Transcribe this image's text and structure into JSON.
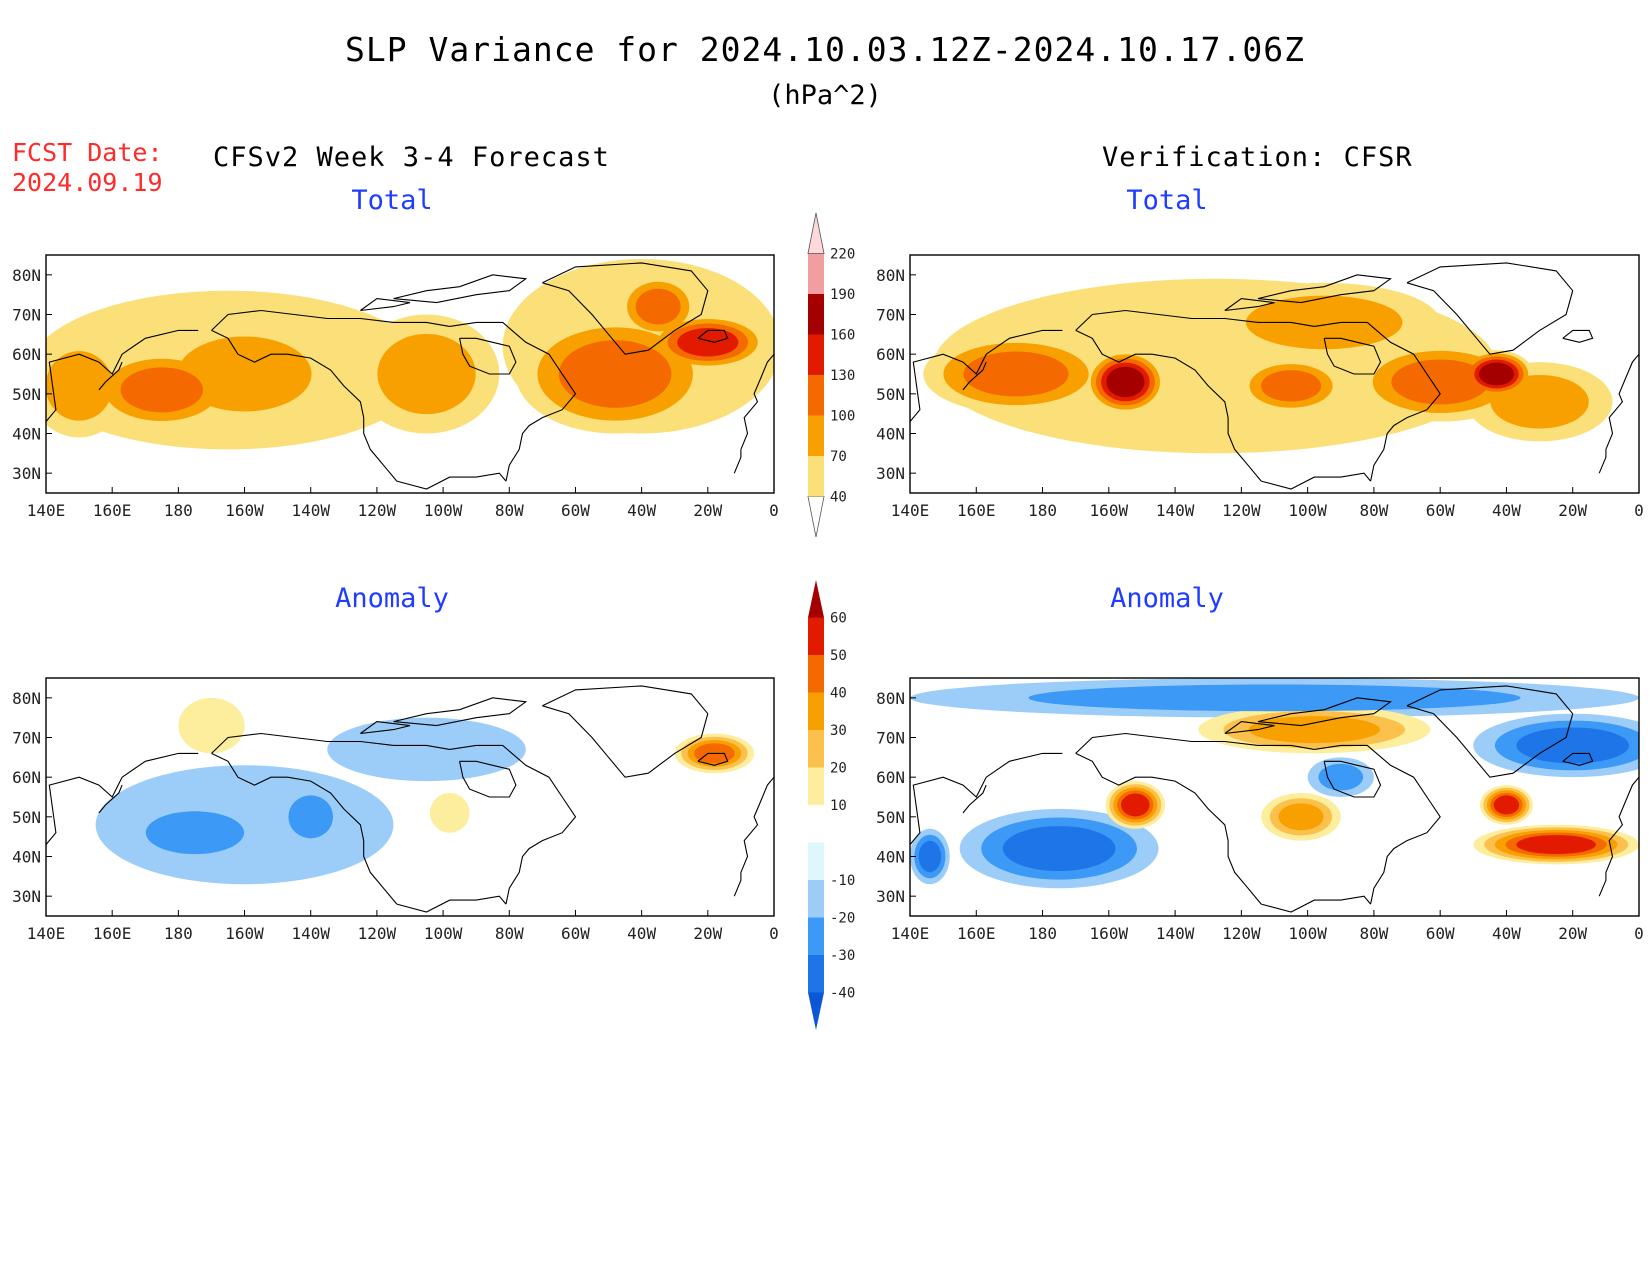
{
  "header": {
    "title": "SLP Variance for 2024.10.03.12Z-2024.10.17.06Z",
    "units": "(hPa^2)",
    "fcst_date_label": "FCST Date:",
    "fcst_date_value": "2024.09.19",
    "left_column_title": "CFSv2 Week 3-4 Forecast",
    "right_column_title": "Verification: CFSR"
  },
  "axes": {
    "lon_ticks": [
      "140E",
      "160E",
      "180",
      "160W",
      "140W",
      "120W",
      "100W",
      "80W",
      "60W",
      "40W",
      "20W",
      "0"
    ],
    "lat_ticks": [
      "80N",
      "70N",
      "60N",
      "50N",
      "40N",
      "30N"
    ],
    "lon_values": [
      140,
      160,
      180,
      200,
      220,
      240,
      260,
      280,
      300,
      320,
      340,
      360
    ],
    "lat_values": [
      80,
      70,
      60,
      50,
      40,
      30
    ],
    "lon_range": [
      140,
      360
    ],
    "lat_range": [
      25,
      85
    ]
  },
  "colorbars": {
    "total": {
      "levels": [
        "40",
        "70",
        "100",
        "130",
        "160",
        "190",
        "220"
      ],
      "colors": [
        "#fbe079",
        "#f7a000",
        "#f46900",
        "#e11a00",
        "#a50000",
        "#f09ea0",
        "#fdd9da"
      ]
    },
    "anomaly": {
      "levels": [
        "-40",
        "-30",
        "-20",
        "-10",
        "10",
        "20",
        "30",
        "40",
        "50",
        "60"
      ],
      "colors": [
        "#0a58d5",
        "#1e75e8",
        "#3c99f5",
        "#9ccdf8",
        "#e0f6fd",
        "#ffffff",
        "#fcee9d",
        "#fbc14c",
        "#f7a000",
        "#f46900",
        "#e11a00",
        "#a50000"
      ]
    }
  },
  "panels": [
    {
      "id": "forecast-total",
      "title": "Total",
      "fields": [
        {
          "lon": 150,
          "lat": 52,
          "value": 90,
          "rx": 15,
          "ry": 13
        },
        {
          "lon": 175,
          "lat": 51,
          "value": 115,
          "rx": 22,
          "ry": 10
        },
        {
          "lon": 200,
          "lat": 55,
          "value": 95,
          "rx": 30,
          "ry": 14
        },
        {
          "lon": 255,
          "lat": 55,
          "value": 90,
          "rx": 22,
          "ry": 15
        },
        {
          "lon": 312,
          "lat": 55,
          "value": 100,
          "rx": 30,
          "ry": 15
        },
        {
          "lon": 325,
          "lat": 72,
          "value": 100,
          "rx": 12,
          "ry": 8
        },
        {
          "lon": 340,
          "lat": 63,
          "value": 140,
          "rx": 18,
          "ry": 7
        },
        {
          "lon": 195,
          "lat": 56,
          "value": 55,
          "rx": 60,
          "ry": 20
        },
        {
          "lon": 320,
          "lat": 62,
          "value": 60,
          "rx": 42,
          "ry": 22
        }
      ]
    },
    {
      "id": "verification-total",
      "title": "Total",
      "fields": [
        {
          "lon": 172,
          "lat": 55,
          "value": 110,
          "rx": 28,
          "ry": 10
        },
        {
          "lon": 205,
          "lat": 53,
          "value": 160,
          "rx": 12,
          "ry": 8
        },
        {
          "lon": 255,
          "lat": 52,
          "value": 110,
          "rx": 16,
          "ry": 7
        },
        {
          "lon": 300,
          "lat": 53,
          "value": 115,
          "rx": 26,
          "ry": 10
        },
        {
          "lon": 317,
          "lat": 55,
          "value": 165,
          "rx": 11,
          "ry": 6
        },
        {
          "lon": 330,
          "lat": 48,
          "value": 90,
          "rx": 22,
          "ry": 10
        },
        {
          "lon": 265,
          "lat": 68,
          "value": 80,
          "rx": 35,
          "ry": 10
        },
        {
          "lon": 232,
          "lat": 57,
          "value": 55,
          "rx": 85,
          "ry": 22
        }
      ]
    },
    {
      "id": "forecast-anomaly",
      "title": "Anomaly",
      "fields": [
        {
          "lon": 185,
          "lat": 46,
          "value": -25,
          "rx": 22,
          "ry": 8
        },
        {
          "lon": 220,
          "lat": 50,
          "value": -28,
          "rx": 10,
          "ry": 8
        },
        {
          "lon": 200,
          "lat": 48,
          "value": -12,
          "rx": 45,
          "ry": 15
        },
        {
          "lon": 255,
          "lat": 67,
          "value": -12,
          "rx": 30,
          "ry": 8
        },
        {
          "lon": 342,
          "lat": 66,
          "value": 45,
          "rx": 12,
          "ry": 5
        },
        {
          "lon": 190,
          "lat": 73,
          "value": 15,
          "rx": 10,
          "ry": 7
        },
        {
          "lon": 262,
          "lat": 51,
          "value": 15,
          "rx": 6,
          "ry": 5
        }
      ]
    },
    {
      "id": "verification-anomaly",
      "title": "Anomaly",
      "fields": [
        {
          "lon": 185,
          "lat": 42,
          "value": -38,
          "rx": 30,
          "ry": 10
        },
        {
          "lon": 146,
          "lat": 40,
          "value": -30,
          "rx": 6,
          "ry": 7
        },
        {
          "lon": 208,
          "lat": 53,
          "value": 50,
          "rx": 9,
          "ry": 6
        },
        {
          "lon": 258,
          "lat": 50,
          "value": 35,
          "rx": 12,
          "ry": 6
        },
        {
          "lon": 262,
          "lat": 72,
          "value": 30,
          "rx": 35,
          "ry": 6
        },
        {
          "lon": 320,
          "lat": 53,
          "value": 55,
          "rx": 8,
          "ry": 5
        },
        {
          "lon": 340,
          "lat": 68,
          "value": -38,
          "rx": 30,
          "ry": 8
        },
        {
          "lon": 335,
          "lat": 43,
          "value": 55,
          "rx": 25,
          "ry": 5
        },
        {
          "lon": 270,
          "lat": 60,
          "value": -28,
          "rx": 10,
          "ry": 5
        },
        {
          "lon": 250,
          "lat": 80,
          "value": -25,
          "rx": 110,
          "ry": 5
        }
      ]
    }
  ]
}
